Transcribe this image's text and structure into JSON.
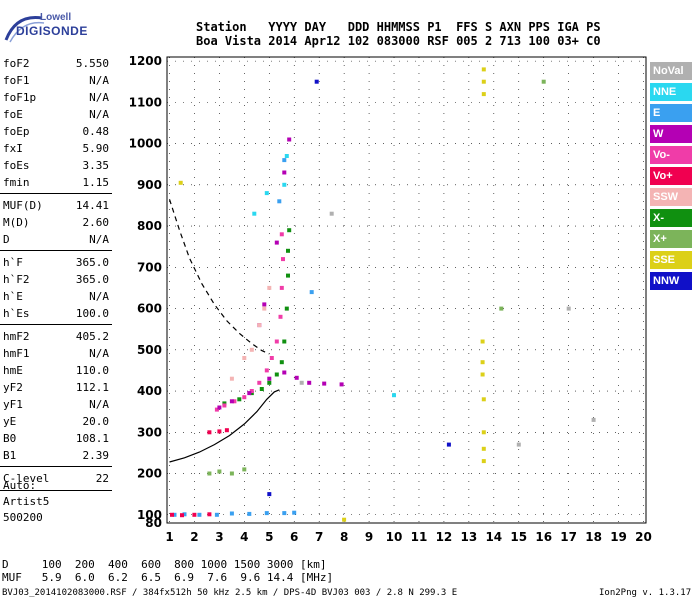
{
  "logo": {
    "line1": "Lowell",
    "line2": "DIGISONDE"
  },
  "header": {
    "row1": "Station   YYYY DAY   DDD HHMMSS P1  FFS S AXN PPS IGA PS",
    "row2": "Boa Vista 2014 Apr12 102 083000 RSF 005 2 713 100 03+ C0"
  },
  "params": [
    {
      "group": 1,
      "name": "foF2",
      "value": "5.550"
    },
    {
      "group": 1,
      "name": "foF1",
      "value": "N/A"
    },
    {
      "group": 1,
      "name": "foF1p",
      "value": "N/A"
    },
    {
      "group": 1,
      "name": "foE",
      "value": "N/A"
    },
    {
      "group": 1,
      "name": "foEp",
      "value": "0.48"
    },
    {
      "group": 1,
      "name": "fxI",
      "value": "5.90"
    },
    {
      "group": 1,
      "name": "foEs",
      "value": "3.35"
    },
    {
      "group": 1,
      "name": "fmin",
      "value": "1.15"
    },
    {
      "group": 2,
      "name": "MUF(D)",
      "value": "14.41"
    },
    {
      "group": 2,
      "name": "M(D)",
      "value": "2.60"
    },
    {
      "group": 2,
      "name": "D",
      "value": "N/A"
    },
    {
      "group": 3,
      "name": "h`F",
      "value": "365.0"
    },
    {
      "group": 3,
      "name": "h`F2",
      "value": "365.0"
    },
    {
      "group": 3,
      "name": "h`E",
      "value": "N/A"
    },
    {
      "group": 3,
      "name": "h`Es",
      "value": "100.0"
    },
    {
      "group": 4,
      "name": "hmF2",
      "value": "405.2"
    },
    {
      "group": 4,
      "name": "hmF1",
      "value": "N/A"
    },
    {
      "group": 4,
      "name": "hmE",
      "value": "110.0"
    },
    {
      "group": 4,
      "name": "yF2",
      "value": "112.1"
    },
    {
      "group": 4,
      "name": "yF1",
      "value": "N/A"
    },
    {
      "group": 4,
      "name": "yE",
      "value": "20.0"
    },
    {
      "group": 4,
      "name": "B0",
      "value": "108.1"
    },
    {
      "group": 4,
      "name": "B1",
      "value": "2.39"
    },
    {
      "group": 5,
      "name": "C-level",
      "value": "22"
    }
  ],
  "auto": {
    "line1": "Auto:",
    "line2": "Artist5",
    "line3": "500200"
  },
  "legend": [
    {
      "label": "NoVal",
      "color": "#b0b0b0"
    },
    {
      "label": "NNE",
      "color": "#2ad8f0"
    },
    {
      "label": "E",
      "color": "#3aa0f0"
    },
    {
      "label": "W",
      "color": "#b400b4"
    },
    {
      "label": "Vo-",
      "color": "#f03ca8"
    },
    {
      "label": "Vo+",
      "color": "#f00050"
    },
    {
      "label": "SSW",
      "color": "#f4b4b4"
    },
    {
      "label": "X-",
      "color": "#109010"
    },
    {
      "label": "X+",
      "color": "#7cb45a"
    },
    {
      "label": "SSE",
      "color": "#dcd018"
    },
    {
      "label": "NNW",
      "color": "#1010c8"
    }
  ],
  "muf_table": {
    "row1": "D     100  200  400  600  800 1000 1500 3000 [km]",
    "row2": "MUF   5.9  6.0  6.2  6.5  6.9  7.6  9.6 14.4 [MHz]"
  },
  "footer": {
    "left": "BVJ03_2014102083000.RSF / 384fx512h 50 kHz 2.5 km / DPS-4D BVJ03 003 / 2.8 N 299.3 E",
    "right": "Ion2Png v. 1.3.17"
  },
  "chart_data": {
    "type": "scatter",
    "x_ticks": [
      1,
      2,
      3,
      4,
      5,
      6,
      7,
      8,
      9,
      10,
      11,
      12,
      13,
      14,
      15,
      16,
      17,
      18,
      19,
      20
    ],
    "y_ticks": [
      80,
      100,
      200,
      300,
      400,
      500,
      600,
      700,
      800,
      900,
      1000,
      1100,
      1200
    ],
    "xlim": [
      0.9,
      20.1
    ],
    "ylim": [
      80,
      1210
    ],
    "grid": true,
    "series": [
      {
        "name": "X-",
        "color": "#109010",
        "points": [
          [
            3.2,
            370
          ],
          [
            3.8,
            380
          ],
          [
            4.3,
            395
          ],
          [
            4.7,
            405
          ],
          [
            5.0,
            420
          ],
          [
            5.3,
            440
          ],
          [
            5.5,
            470
          ],
          [
            5.6,
            520
          ],
          [
            5.7,
            600
          ],
          [
            5.75,
            680
          ],
          [
            5.75,
            740
          ],
          [
            5.8,
            790
          ]
        ]
      },
      {
        "name": "Vo-",
        "color": "#f03ca8",
        "points": [
          [
            2.9,
            355
          ],
          [
            3.2,
            365
          ],
          [
            3.6,
            375
          ],
          [
            4.0,
            385
          ],
          [
            4.3,
            400
          ],
          [
            4.6,
            420
          ],
          [
            4.9,
            450
          ],
          [
            5.1,
            480
          ],
          [
            5.3,
            520
          ],
          [
            5.45,
            580
          ],
          [
            5.5,
            650
          ],
          [
            5.55,
            720
          ],
          [
            5.5,
            780
          ]
        ]
      },
      {
        "name": "W",
        "color": "#b400b4",
        "points": [
          [
            3.0,
            360
          ],
          [
            3.5,
            375
          ],
          [
            4.2,
            395
          ],
          [
            5.0,
            430
          ],
          [
            5.6,
            445
          ],
          [
            6.1,
            432
          ],
          [
            6.6,
            420
          ],
          [
            7.2,
            418
          ],
          [
            7.9,
            416
          ],
          [
            4.6,
            560
          ],
          [
            4.8,
            610
          ],
          [
            5.3,
            760
          ],
          [
            5.6,
            930
          ],
          [
            5.8,
            1010
          ]
        ]
      },
      {
        "name": "E",
        "color": "#3aa0f0",
        "points": [
          [
            1.2,
            100
          ],
          [
            1.6,
            101
          ],
          [
            2.2,
            100
          ],
          [
            2.9,
            100
          ],
          [
            3.5,
            103
          ],
          [
            4.2,
            102
          ],
          [
            4.9,
            104
          ],
          [
            5.6,
            104
          ],
          [
            6.0,
            105
          ],
          [
            5.4,
            860
          ],
          [
            5.6,
            960
          ],
          [
            6.7,
            640
          ]
        ]
      },
      {
        "name": "Vo+",
        "color": "#f00050",
        "points": [
          [
            1.1,
            100
          ],
          [
            1.5,
            99
          ],
          [
            2.0,
            100
          ],
          [
            2.6,
            101
          ],
          [
            2.6,
            300
          ],
          [
            3.0,
            302
          ],
          [
            3.3,
            305
          ]
        ]
      },
      {
        "name": "SSW",
        "color": "#f4b4b4",
        "points": [
          [
            4.3,
            500
          ],
          [
            4.6,
            560
          ],
          [
            4.8,
            600
          ],
          [
            5.0,
            650
          ],
          [
            4.0,
            480
          ],
          [
            3.5,
            430
          ]
        ]
      },
      {
        "name": "X+",
        "color": "#7cb45a",
        "points": [
          [
            2.6,
            200
          ],
          [
            3.0,
            205
          ],
          [
            3.5,
            200
          ],
          [
            4.0,
            210
          ],
          [
            14.3,
            600
          ],
          [
            16.0,
            1150
          ]
        ]
      },
      {
        "name": "NNE",
        "color": "#2ad8f0",
        "points": [
          [
            5.6,
            900
          ],
          [
            5.7,
            970
          ],
          [
            4.4,
            830
          ],
          [
            4.9,
            880
          ],
          [
            10.0,
            390
          ]
        ]
      },
      {
        "name": "SSE",
        "color": "#dcd018",
        "points": [
          [
            13.6,
            1180
          ],
          [
            13.6,
            1150
          ],
          [
            13.6,
            1120
          ],
          [
            13.55,
            520
          ],
          [
            13.55,
            470
          ],
          [
            13.55,
            440
          ],
          [
            13.6,
            380
          ],
          [
            13.6,
            300
          ],
          [
            13.6,
            260
          ],
          [
            13.6,
            230
          ],
          [
            8.0,
            88
          ],
          [
            1.45,
            905
          ]
        ]
      },
      {
        "name": "NoVal",
        "color": "#b0b0b0",
        "points": [
          [
            6.3,
            420
          ],
          [
            7.5,
            830
          ],
          [
            15.0,
            270
          ],
          [
            17.0,
            600
          ],
          [
            18.0,
            330
          ]
        ]
      },
      {
        "name": "NNW",
        "color": "#1010c8",
        "points": [
          [
            5.0,
            150
          ],
          [
            6.9,
            1150
          ],
          [
            12.2,
            270
          ]
        ]
      }
    ],
    "curves": [
      {
        "name": "profile",
        "style": "solid",
        "points": [
          [
            1.0,
            228
          ],
          [
            1.6,
            238
          ],
          [
            2.2,
            252
          ],
          [
            2.8,
            270
          ],
          [
            3.4,
            292
          ],
          [
            4.0,
            320
          ],
          [
            4.5,
            350
          ],
          [
            4.9,
            380
          ],
          [
            5.2,
            398
          ],
          [
            5.4,
            403
          ]
        ]
      },
      {
        "name": "muf-curve",
        "style": "dashed",
        "points": [
          [
            1.0,
            865
          ],
          [
            1.4,
            790
          ],
          [
            1.8,
            722
          ],
          [
            2.3,
            660
          ],
          [
            2.8,
            610
          ],
          [
            3.3,
            570
          ],
          [
            3.8,
            540
          ],
          [
            4.3,
            515
          ],
          [
            4.7,
            498
          ],
          [
            5.0,
            490
          ]
        ]
      }
    ]
  }
}
